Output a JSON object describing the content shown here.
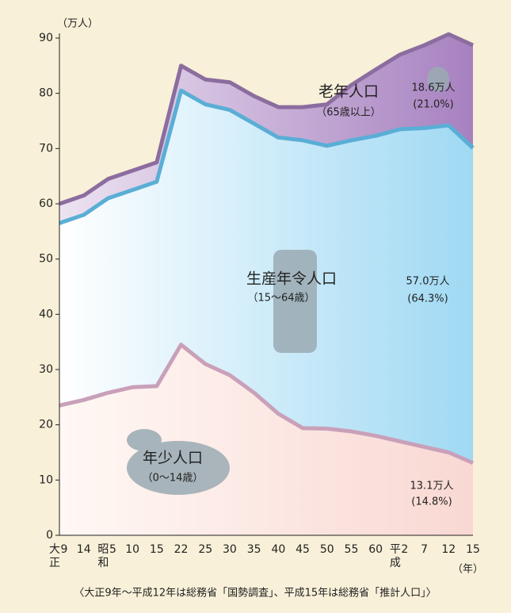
{
  "chart_data": {
    "type": "stacked_area",
    "y_unit": "（万人）",
    "x_unit": "（年）",
    "source": "〈大正9年〜平成12年は総務省「国勢調査」、平成15年は総務省「推計人口」〉",
    "categories": [
      "大正9",
      "14",
      "昭和5",
      "10",
      "15",
      "22",
      "25",
      "30",
      "35",
      "40",
      "45",
      "50",
      "55",
      "60",
      "平成2",
      "7",
      "12",
      "15"
    ],
    "series": [
      {
        "name": "年少人口",
        "range": "（0〜14歳）",
        "color": "#c9a0b9",
        "fill": [
          "#fff8f4",
          "#f9d8d3"
        ],
        "values": [
          23.5,
          24.5,
          25.8,
          26.8,
          27,
          34.5,
          31,
          29,
          25.8,
          22,
          19.4,
          19.3,
          18.8,
          18,
          17,
          16,
          15,
          13.1
        ],
        "end_label": "13.1万人",
        "share_label": "(14.8%)"
      },
      {
        "name": "生産年令人口",
        "range": "（15〜64歳）",
        "color": "#5aaed6",
        "fill": [
          "#ffffff",
          "#9fd9f3"
        ],
        "values": [
          33,
          33.5,
          35.2,
          35.7,
          37,
          46,
          47,
          48,
          48.7,
          50,
          52.1,
          51.2,
          52.7,
          54.3,
          56.5,
          57.7,
          59.2,
          57.0
        ],
        "end_label": "57.0万人",
        "share_label": "(64.3%)"
      },
      {
        "name": "老年人口",
        "range": "（65歳以上）",
        "color": "#8c6d9f",
        "fill": [
          "#ece3f1",
          "#a781c0"
        ],
        "values": [
          3.5,
          3.5,
          3.5,
          3.5,
          3.5,
          4.5,
          4.5,
          5,
          5,
          5.5,
          6,
          7.5,
          10,
          12,
          13.5,
          15,
          16.5,
          18.6
        ],
        "end_label": "18.6万人",
        "share_label": "(21.0%)"
      }
    ],
    "ylim": [
      0,
      90
    ],
    "yticks": [
      0,
      10,
      20,
      30,
      40,
      50,
      60,
      70,
      80,
      90
    ],
    "background": "#f8f0d8"
  }
}
